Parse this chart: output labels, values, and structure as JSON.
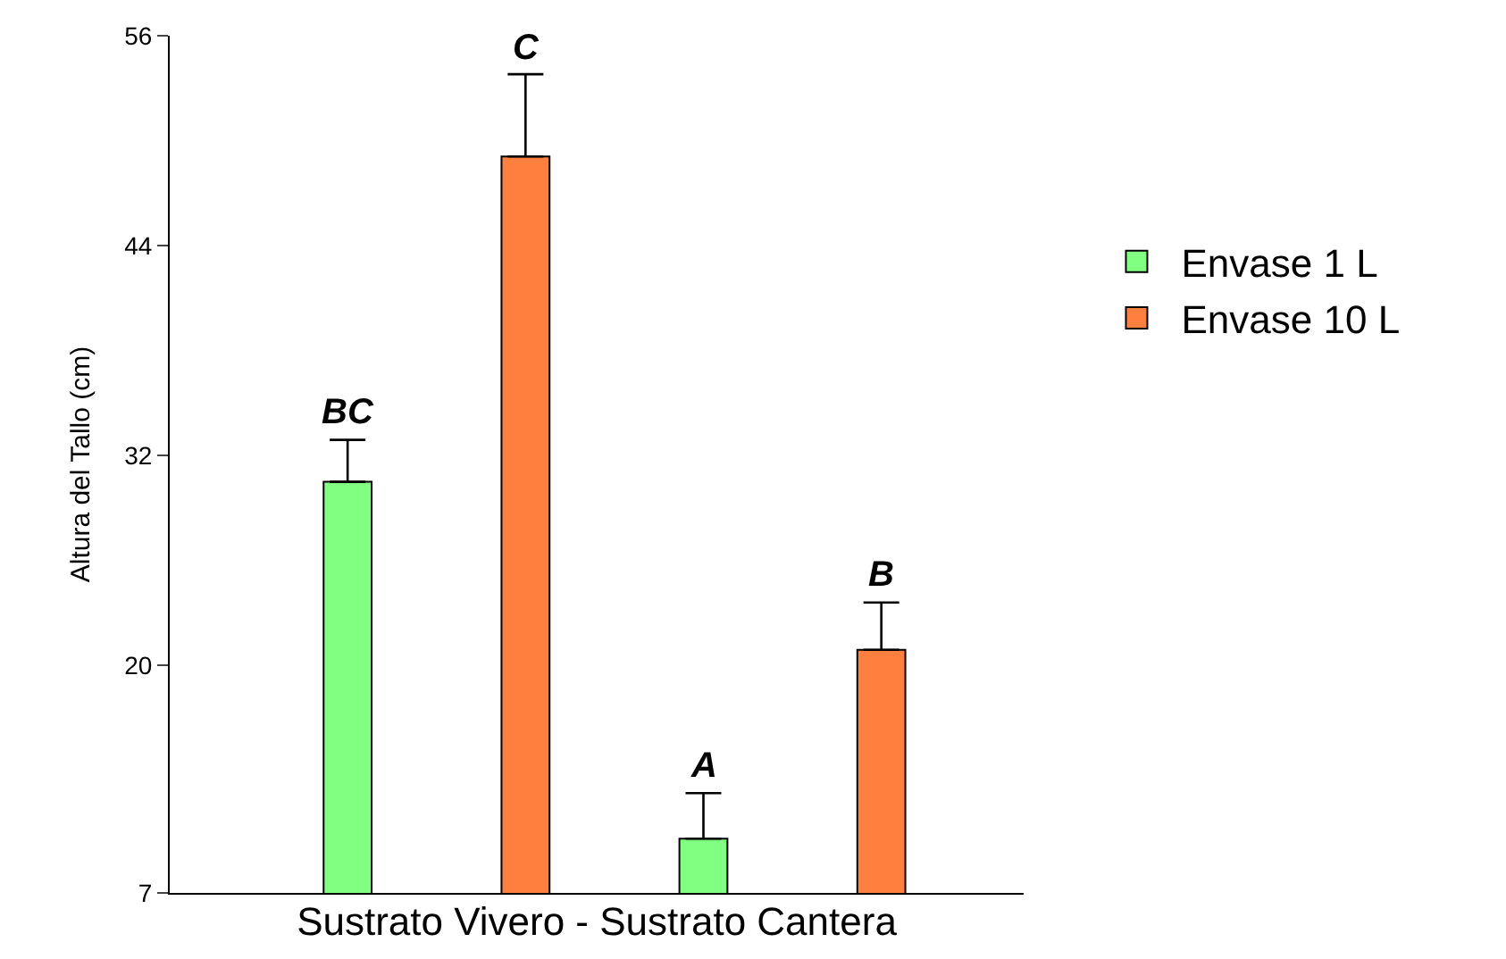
{
  "chart_data": {
    "type": "bar",
    "xlabel": "Sustrato Vivero - Sustrato Cantera",
    "ylabel": "Altura del Tallo (cm)",
    "categories": [
      null,
      null,
      null,
      null
    ],
    "series": [
      {
        "name": "Envase 1 L",
        "color": "#80ff80",
        "values": [
          30.5,
          null,
          10.1,
          null
        ],
        "errors": [
          [
            30.5,
            32.9
          ],
          null,
          [
            10.1,
            12.7
          ],
          null
        ]
      },
      {
        "name": "Envase 10 L",
        "color": "#ff7f3f",
        "values": [
          null,
          49.1,
          null,
          20.9
        ],
        "errors": [
          null,
          [
            49.1,
            53.8
          ],
          null,
          [
            20.9,
            23.6
          ]
        ]
      }
    ],
    "annotations": [
      "BC",
      "C",
      "A",
      "B"
    ],
    "ylim": [
      7,
      56
    ],
    "yticks": [
      7,
      20,
      32,
      44,
      56
    ],
    "legend": "right"
  }
}
